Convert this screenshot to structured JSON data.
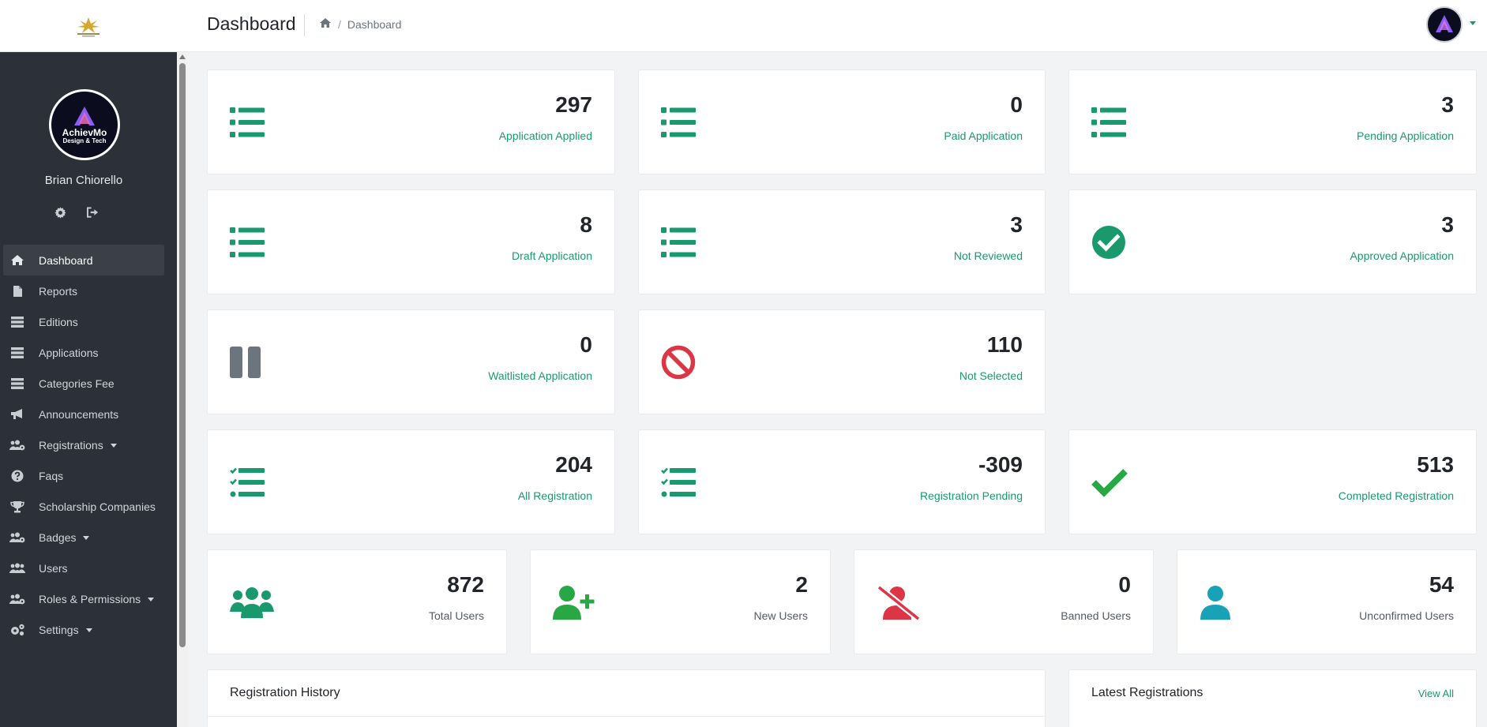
{
  "header": {
    "title": "Dashboard",
    "breadcrumb": "Dashboard",
    "logo_alt": "Brand logo"
  },
  "profile": {
    "name": "Brian Chiorello",
    "logo_text": "AchievMo",
    "logo_sub": "Design & Tech"
  },
  "sidebar": {
    "items": [
      {
        "label": "Dashboard",
        "icon": "home-icon",
        "active": true,
        "caret": false
      },
      {
        "label": "Reports",
        "icon": "file-icon",
        "active": false,
        "caret": false
      },
      {
        "label": "Editions",
        "icon": "stack-icon",
        "active": false,
        "caret": false
      },
      {
        "label": "Applications",
        "icon": "stack-icon",
        "active": false,
        "caret": false
      },
      {
        "label": "Categories Fee",
        "icon": "stack-icon",
        "active": false,
        "caret": false
      },
      {
        "label": "Announcements",
        "icon": "megaphone-icon",
        "active": false,
        "caret": false
      },
      {
        "label": "Registrations",
        "icon": "users-cog-icon",
        "active": false,
        "caret": true
      },
      {
        "label": "Faqs",
        "icon": "question-icon",
        "active": false,
        "caret": false
      },
      {
        "label": "Scholarship Companies",
        "icon": "trophy-icon",
        "active": false,
        "caret": false
      },
      {
        "label": "Badges",
        "icon": "users-cog-icon",
        "active": false,
        "caret": true
      },
      {
        "label": "Users",
        "icon": "users-icon",
        "active": false,
        "caret": false
      },
      {
        "label": "Roles & Permissions",
        "icon": "users-cog-icon",
        "active": false,
        "caret": true
      },
      {
        "label": "Settings",
        "icon": "cogs-icon",
        "active": false,
        "caret": true
      }
    ]
  },
  "stats": {
    "applied": {
      "value": "297",
      "label": "Application Applied"
    },
    "paid": {
      "value": "0",
      "label": "Paid Application"
    },
    "pending": {
      "value": "3",
      "label": "Pending Application"
    },
    "draft": {
      "value": "8",
      "label": "Draft Application"
    },
    "not_reviewed": {
      "value": "3",
      "label": "Not Reviewed"
    },
    "approved": {
      "value": "3",
      "label": "Approved Application"
    },
    "waitlisted": {
      "value": "0",
      "label": "Waitlisted Application"
    },
    "not_selected": {
      "value": "110",
      "label": "Not Selected"
    },
    "all_reg": {
      "value": "204",
      "label": "All Registration"
    },
    "reg_pending": {
      "value": "-309",
      "label": "Registration Pending"
    },
    "completed_reg": {
      "value": "513",
      "label": "Completed Registration"
    },
    "total_users": {
      "value": "872",
      "label": "Total Users"
    },
    "new_users": {
      "value": "2",
      "label": "New Users"
    },
    "banned_users": {
      "value": "0",
      "label": "Banned Users"
    },
    "unconfirmed_users": {
      "value": "54",
      "label": "Unconfirmed Users"
    }
  },
  "panels": {
    "history_title": "Registration History",
    "latest_title": "Latest Registrations",
    "view_all": "View All"
  },
  "colors": {
    "green": "#1a9a6c",
    "bright_green": "#28a745",
    "red": "#dc3545",
    "gray": "#6c757d",
    "teal": "#17a2b8",
    "sidebar_bg": "#2c3038"
  }
}
